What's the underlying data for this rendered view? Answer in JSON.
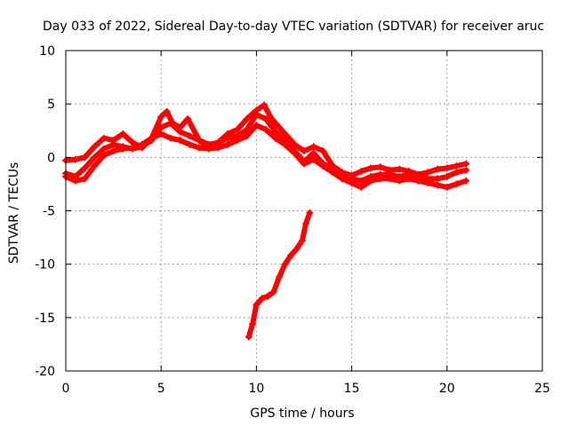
{
  "chart_data": {
    "type": "scatter",
    "title": "Day 033 of 2022, Sidereal Day-to-day VTEC variation (SDTVAR) for receiver aruc",
    "xlabel": "GPS time / hours",
    "ylabel": "SDTVAR / TECUs",
    "xlim": [
      0,
      25
    ],
    "ylim": [
      -20,
      10
    ],
    "xticks": [
      0,
      5,
      10,
      15,
      20,
      25
    ],
    "yticks": [
      -20,
      -15,
      -10,
      -5,
      0,
      5,
      10
    ],
    "xtick_labels": [
      "0",
      "5",
      "10",
      "15",
      "20",
      "25"
    ],
    "ytick_labels": [
      "-20",
      "-15",
      "-10",
      "-5",
      "0",
      "5",
      "10"
    ],
    "grid": true,
    "marker": "+",
    "series_color": "#ff0000",
    "series": [
      {
        "name": "track-upper",
        "x": [
          0.0,
          0.5,
          1.0,
          1.5,
          2.0,
          2.5,
          3.0,
          3.5,
          4.0,
          4.5,
          5.0,
          5.3,
          5.6,
          6.0,
          6.4,
          7.0,
          7.5,
          8.0,
          8.5,
          9.0,
          9.5,
          10.0,
          10.4,
          10.8,
          11.2,
          11.6,
          12.0,
          12.5,
          13.0,
          13.5,
          14.0,
          14.5,
          15.0,
          15.5,
          16.0,
          16.5,
          17.0,
          17.5,
          18.0,
          18.5,
          19.0,
          19.5,
          20.0,
          20.5,
          21.0
        ],
        "y": [
          -0.3,
          -0.2,
          0.0,
          1.0,
          1.8,
          1.6,
          2.2,
          1.4,
          0.9,
          1.8,
          3.8,
          4.3,
          3.2,
          2.8,
          3.6,
          1.6,
          0.9,
          1.4,
          2.2,
          2.6,
          3.6,
          4.4,
          4.9,
          3.6,
          2.8,
          2.0,
          1.2,
          0.6,
          1.0,
          0.6,
          -0.8,
          -1.4,
          -1.7,
          -1.3,
          -1.0,
          -0.9,
          -1.2,
          -1.1,
          -1.3,
          -1.6,
          -1.4,
          -1.1,
          -1.0,
          -0.8,
          -0.6
        ]
      },
      {
        "name": "track-middle",
        "x": [
          0.0,
          0.5,
          1.0,
          1.5,
          2.0,
          2.5,
          3.0,
          3.5,
          4.0,
          4.5,
          5.0,
          5.5,
          6.0,
          6.5,
          7.0,
          7.5,
          8.0,
          8.5,
          9.0,
          9.5,
          10.0,
          10.5,
          11.0,
          11.5,
          12.0,
          12.5,
          13.0,
          13.5,
          14.0,
          14.5,
          15.0,
          15.5,
          16.0,
          16.5,
          17.0,
          17.5,
          18.0,
          18.5,
          19.0,
          19.5,
          20.0,
          20.5,
          21.0
        ],
        "y": [
          -1.5,
          -1.8,
          -1.0,
          0.0,
          0.8,
          1.2,
          1.0,
          0.8,
          1.0,
          1.6,
          2.8,
          3.2,
          2.4,
          2.0,
          1.6,
          1.2,
          1.4,
          1.8,
          2.0,
          2.6,
          4.0,
          3.6,
          2.4,
          1.6,
          0.6,
          -0.4,
          0.4,
          -0.6,
          -1.0,
          -1.6,
          -2.0,
          -2.2,
          -1.8,
          -1.6,
          -1.6,
          -1.8,
          -1.6,
          -1.7,
          -2.0,
          -2.0,
          -1.8,
          -1.4,
          -1.2
        ]
      },
      {
        "name": "track-lower",
        "x": [
          0.0,
          0.5,
          1.0,
          1.5,
          2.0,
          2.5,
          3.0,
          3.5,
          4.0,
          4.5,
          5.0,
          5.5,
          6.0,
          6.5,
          7.0,
          7.5,
          8.0,
          8.5,
          9.0,
          9.5,
          10.0,
          10.5,
          11.0,
          11.5,
          12.0,
          12.5,
          13.0,
          13.5,
          14.0,
          14.5,
          15.0,
          15.5,
          16.0,
          16.5,
          17.0,
          17.5,
          18.0,
          18.5,
          19.0,
          19.5,
          20.0,
          20.5,
          21.0
        ],
        "y": [
          -1.8,
          -2.2,
          -2.0,
          -0.8,
          0.2,
          0.6,
          0.8,
          0.9,
          1.2,
          1.8,
          2.2,
          1.8,
          1.6,
          1.2,
          0.9,
          0.8,
          0.9,
          1.2,
          1.6,
          2.0,
          3.0,
          2.6,
          1.8,
          1.2,
          0.4,
          -0.6,
          -0.2,
          -0.8,
          -1.4,
          -2.0,
          -2.4,
          -2.8,
          -2.2,
          -2.0,
          -2.0,
          -2.2,
          -2.0,
          -2.2,
          -2.4,
          -2.6,
          -2.8,
          -2.5,
          -2.2
        ]
      },
      {
        "name": "track-steep",
        "x": [
          9.6,
          9.8,
          10.0,
          10.3,
          10.6,
          10.9,
          11.2,
          11.5,
          11.8,
          12.1,
          12.4,
          12.6,
          12.8
        ],
        "y": [
          -16.8,
          -15.6,
          -13.8,
          -13.2,
          -13.0,
          -12.6,
          -11.2,
          -10.0,
          -9.2,
          -8.6,
          -7.8,
          -6.2,
          -5.2
        ]
      }
    ]
  }
}
